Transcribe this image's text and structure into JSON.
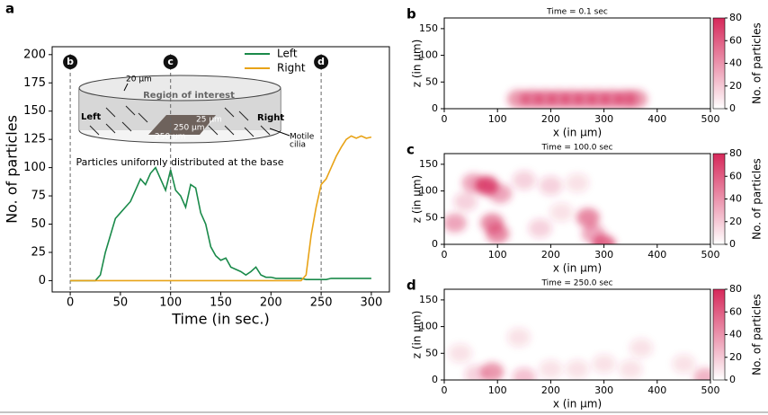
{
  "chart_data": [
    {
      "type": "line",
      "panel": "a",
      "xlabel": "Time (in sec.)",
      "ylabel": "No. of particles",
      "xlim": [
        -18,
        318
      ],
      "ylim": [
        -10,
        207
      ],
      "xticks": [
        0,
        50,
        100,
        150,
        200,
        250,
        300
      ],
      "yticks": [
        0,
        25,
        50,
        75,
        100,
        125,
        150,
        175,
        200
      ],
      "legend": "upper right",
      "markers": {
        "x": [
          0,
          100,
          250
        ],
        "labels": [
          "b",
          "c",
          "d"
        ]
      },
      "annotations": [
        "20 µm",
        "Region of interest",
        "Left",
        "Right",
        "25 µm",
        "250 µm",
        "250 µm",
        "Motile",
        "cilia",
        "Particles uniformly distributed at the base"
      ],
      "x": [
        0,
        5,
        10,
        15,
        20,
        25,
        30,
        35,
        40,
        45,
        50,
        55,
        60,
        65,
        70,
        75,
        80,
        85,
        90,
        95,
        100,
        105,
        110,
        115,
        120,
        125,
        130,
        135,
        140,
        145,
        150,
        155,
        160,
        165,
        170,
        175,
        180,
        185,
        190,
        195,
        200,
        205,
        210,
        215,
        220,
        225,
        230,
        235,
        240,
        245,
        250,
        255,
        260,
        265,
        270,
        275,
        280,
        285,
        290,
        295,
        300
      ],
      "series": [
        {
          "name": "Left",
          "color": "#1a8a4a",
          "values": [
            0,
            0,
            0,
            0,
            0,
            0,
            5,
            25,
            40,
            55,
            60,
            65,
            70,
            80,
            90,
            85,
            95,
            100,
            90,
            80,
            98,
            80,
            75,
            65,
            85,
            82,
            60,
            50,
            30,
            22,
            18,
            20,
            12,
            10,
            8,
            5,
            8,
            12,
            5,
            3,
            3,
            2,
            2,
            2,
            2,
            2,
            2,
            1,
            1,
            1,
            1,
            1,
            2,
            2,
            2,
            2,
            2,
            2,
            2,
            2,
            2
          ]
        },
        {
          "name": "Right",
          "color": "#e8a317",
          "values": [
            0,
            0,
            0,
            0,
            0,
            0,
            0,
            0,
            0,
            0,
            0,
            0,
            0,
            0,
            0,
            0,
            0,
            0,
            0,
            0,
            0,
            0,
            0,
            0,
            0,
            0,
            0,
            0,
            0,
            0,
            0,
            0,
            0,
            0,
            0,
            0,
            0,
            0,
            0,
            0,
            0,
            0,
            0,
            0,
            0,
            0,
            0,
            5,
            40,
            65,
            85,
            90,
            100,
            110,
            118,
            125,
            128,
            126,
            128,
            126,
            127
          ]
        }
      ]
    },
    {
      "type": "contour",
      "panel": "b",
      "title": "Time = 0.1 sec",
      "xlabel": "x (in µm)",
      "ylabel": "z (in µm)",
      "colorbar_label": "No. of particles",
      "xlim": [
        0,
        500
      ],
      "ylim": [
        0,
        170
      ],
      "xticks": [
        0,
        100,
        200,
        300,
        400,
        500
      ],
      "yticks": [
        0,
        50,
        100,
        150
      ],
      "clim": [
        0,
        80
      ],
      "cticks": [
        0,
        20,
        40,
        60,
        80
      ],
      "color": "#d6285a",
      "blobs": {
        "x": [
          140,
          165,
          190,
          215,
          240,
          265,
          290,
          315,
          340,
          360
        ],
        "z": [
          18,
          18,
          18,
          18,
          18,
          18,
          18,
          18,
          18,
          18
        ],
        "values": [
          35,
          40,
          40,
          40,
          40,
          40,
          40,
          40,
          40,
          35
        ]
      }
    },
    {
      "type": "contour",
      "panel": "c",
      "title": "Time = 100.0 sec",
      "xlabel": "x (in µm)",
      "ylabel": "z (in µm)",
      "colorbar_label": "No. of particles",
      "xlim": [
        0,
        500
      ],
      "ylim": [
        0,
        170
      ],
      "xticks": [
        0,
        100,
        200,
        300,
        400,
        500
      ],
      "yticks": [
        0,
        50,
        100,
        150
      ],
      "clim": [
        0,
        80
      ],
      "cticks": [
        0,
        20,
        40,
        60,
        80
      ],
      "color": "#d6285a",
      "blobs": {
        "x": [
          80,
          55,
          105,
          20,
          90,
          100,
          150,
          200,
          250,
          270,
          280,
          300,
          180,
          220,
          40
        ],
        "z": [
          110,
          115,
          95,
          40,
          40,
          20,
          120,
          110,
          115,
          50,
          20,
          0,
          30,
          60,
          80
        ],
        "values": [
          60,
          30,
          30,
          30,
          40,
          40,
          15,
          15,
          10,
          40,
          30,
          50,
          15,
          10,
          15
        ]
      }
    },
    {
      "type": "contour",
      "panel": "d",
      "title": "Time = 250.0 sec",
      "xlabel": "x (in µm)",
      "ylabel": "z (in µm)",
      "colorbar_label": "No. of particles",
      "xlim": [
        0,
        500
      ],
      "ylim": [
        0,
        170
      ],
      "xticks": [
        0,
        100,
        200,
        300,
        400,
        500
      ],
      "yticks": [
        0,
        50,
        100,
        150
      ],
      "clim": [
        0,
        80
      ],
      "cticks": [
        0,
        20,
        40,
        60,
        80
      ],
      "color": "#d6285a",
      "blobs": {
        "x": [
          90,
          30,
          150,
          200,
          250,
          300,
          350,
          450,
          490,
          140,
          370,
          60
        ],
        "z": [
          15,
          50,
          5,
          20,
          20,
          30,
          20,
          30,
          5,
          80,
          60,
          10
        ],
        "values": [
          35,
          10,
          20,
          10,
          10,
          10,
          10,
          10,
          25,
          10,
          10,
          15
        ]
      }
    }
  ]
}
